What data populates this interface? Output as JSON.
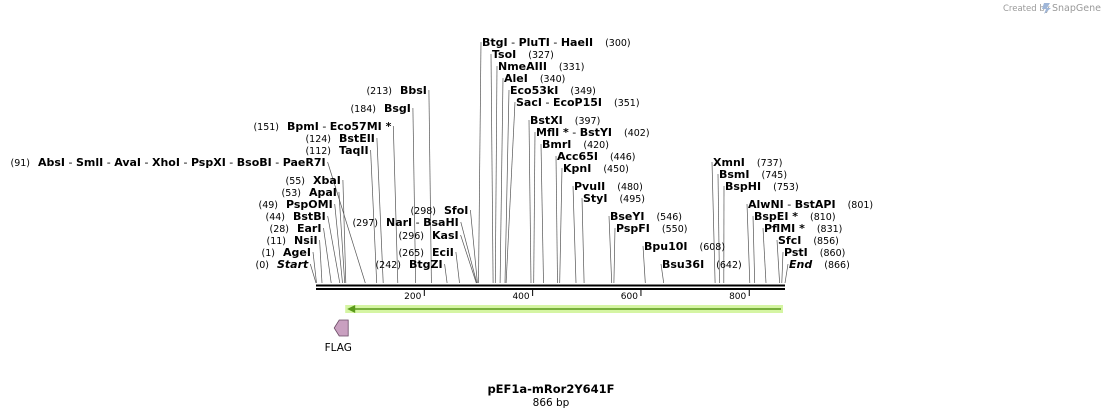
{
  "credit": {
    "prefix": "Created by",
    "brand": "SnapGene"
  },
  "plasmid": {
    "name": "pEF1a-mRor2Y641F",
    "length_label": "866 bp",
    "length": 866
  },
  "ruler": {
    "ticks": [
      200,
      400,
      600,
      800
    ]
  },
  "features": [
    {
      "name": "FLAG",
      "start": 65,
      "end": 72,
      "direction": "reverse",
      "color": "#c9a0c0"
    }
  ],
  "orf": {
    "start": 65,
    "end": 866,
    "direction": "forward",
    "color": "#a6e34a"
  },
  "sites": [
    {
      "label": "Start",
      "pos": 0,
      "show_pos": "(0)",
      "italic": true,
      "parts": [
        "Start"
      ]
    },
    {
      "label": "AgeI",
      "pos": 1,
      "show_pos": "(1)",
      "parts": [
        "AgeI"
      ]
    },
    {
      "label": "NsiI",
      "pos": 11,
      "show_pos": "(11)",
      "parts": [
        "NsiI"
      ]
    },
    {
      "label": "EarI",
      "pos": 28,
      "show_pos": "(28)",
      "parts": [
        "EarI"
      ]
    },
    {
      "label": "BstBI",
      "pos": 44,
      "show_pos": "(44)",
      "parts": [
        "BstBI"
      ]
    },
    {
      "label": "PspOMI",
      "pos": 49,
      "show_pos": "(49)",
      "parts": [
        "PspOMI"
      ]
    },
    {
      "label": "ApaI",
      "pos": 53,
      "show_pos": "(53)",
      "parts": [
        "ApaI"
      ]
    },
    {
      "label": "XbaI",
      "pos": 55,
      "show_pos": "(55)",
      "parts": [
        "XbaI"
      ]
    },
    {
      "label": "AbsI group",
      "pos": 91,
      "show_pos": "(91)",
      "parts": [
        "AbsI",
        "SmlI",
        "AvaI",
        "XhoI",
        "PspXI",
        "BsoBI",
        "PaeR7I"
      ]
    },
    {
      "label": "TaqII",
      "pos": 112,
      "show_pos": "(112)",
      "parts": [
        "TaqII"
      ]
    },
    {
      "label": "BstEII",
      "pos": 124,
      "show_pos": "(124)",
      "parts": [
        "BstEII"
      ]
    },
    {
      "label": "BpmI group",
      "pos": 151,
      "show_pos": "(151)",
      "parts": [
        "BpmI",
        "Eco57MI *"
      ]
    },
    {
      "label": "BsgI",
      "pos": 184,
      "show_pos": "(184)",
      "parts": [
        "BsgI"
      ]
    },
    {
      "label": "BbsI",
      "pos": 213,
      "show_pos": "(213)",
      "parts": [
        "BbsI"
      ]
    },
    {
      "label": "BtgZI",
      "pos": 242,
      "show_pos": "(242)",
      "parts": [
        "BtgZI"
      ]
    },
    {
      "label": "EciI",
      "pos": 265,
      "show_pos": "(265)",
      "parts": [
        "EciI"
      ]
    },
    {
      "label": "KasI",
      "pos": 296,
      "show_pos": "(296)",
      "parts": [
        "KasI"
      ]
    },
    {
      "label": "NarI group",
      "pos": 297,
      "show_pos": "(297)",
      "parts": [
        "NarI",
        "BsaHI"
      ]
    },
    {
      "label": "SfoI",
      "pos": 298,
      "show_pos": "(298)",
      "parts": [
        "SfoI"
      ]
    },
    {
      "label": "BtgI group",
      "pos": 300,
      "show_pos": "(300)",
      "parts": [
        "BtgI",
        "PluTI",
        "HaeII"
      ]
    },
    {
      "label": "TsoI",
      "pos": 327,
      "show_pos": "(327)",
      "parts": [
        "TsoI"
      ]
    },
    {
      "label": "NmeAIII",
      "pos": 331,
      "show_pos": "(331)",
      "parts": [
        "NmeAIII"
      ]
    },
    {
      "label": "AleI",
      "pos": 340,
      "show_pos": "(340)",
      "parts": [
        "AleI"
      ]
    },
    {
      "label": "Eco53kI",
      "pos": 349,
      "show_pos": "(349)",
      "parts": [
        "Eco53kI"
      ]
    },
    {
      "label": "SacI group",
      "pos": 351,
      "show_pos": "(351)",
      "parts": [
        "SacI",
        "EcoP15I"
      ]
    },
    {
      "label": "BstXI",
      "pos": 397,
      "show_pos": "(397)",
      "parts": [
        "BstXI"
      ]
    },
    {
      "label": "MflI group",
      "pos": 402,
      "show_pos": "(402)",
      "parts": [
        "MflI *",
        "BstYI"
      ]
    },
    {
      "label": "BmrI",
      "pos": 420,
      "show_pos": "(420)",
      "parts": [
        "BmrI"
      ]
    },
    {
      "label": "Acc65I",
      "pos": 446,
      "show_pos": "(446)",
      "parts": [
        "Acc65I"
      ]
    },
    {
      "label": "KpnI",
      "pos": 450,
      "show_pos": "(450)",
      "parts": [
        "KpnI"
      ]
    },
    {
      "label": "PvuII",
      "pos": 480,
      "show_pos": "(480)",
      "parts": [
        "PvuII"
      ]
    },
    {
      "label": "StyI",
      "pos": 495,
      "show_pos": "(495)",
      "parts": [
        "StyI"
      ]
    },
    {
      "label": "BseYI",
      "pos": 546,
      "show_pos": "(546)",
      "parts": [
        "BseYI"
      ]
    },
    {
      "label": "PspFI",
      "pos": 550,
      "show_pos": "(550)",
      "parts": [
        "PspFI"
      ]
    },
    {
      "label": "Bpu10I",
      "pos": 608,
      "show_pos": "(608)",
      "parts": [
        "Bpu10I"
      ]
    },
    {
      "label": "Bsu36I",
      "pos": 642,
      "show_pos": "(642)",
      "parts": [
        "Bsu36I"
      ]
    },
    {
      "label": "XmnI",
      "pos": 737,
      "show_pos": "(737)",
      "parts": [
        "XmnI"
      ]
    },
    {
      "label": "BsmI",
      "pos": 745,
      "show_pos": "(745)",
      "parts": [
        "BsmI"
      ]
    },
    {
      "label": "BspHI",
      "pos": 753,
      "show_pos": "(753)",
      "parts": [
        "BspHI"
      ]
    },
    {
      "label": "AlwNI group",
      "pos": 801,
      "show_pos": "(801)",
      "parts": [
        "AlwNI",
        "BstAPI"
      ]
    },
    {
      "label": "BspEI",
      "pos": 810,
      "show_pos": "(810)",
      "parts": [
        "BspEI *"
      ]
    },
    {
      "label": "PflMI",
      "pos": 831,
      "show_pos": "(831)",
      "parts": [
        "PflMI *"
      ]
    },
    {
      "label": "SfcI",
      "pos": 856,
      "show_pos": "(856)",
      "parts": [
        "SfcI"
      ]
    },
    {
      "label": "PstI",
      "pos": 860,
      "show_pos": "(860)",
      "parts": [
        "PstI"
      ]
    },
    {
      "label": "End",
      "pos": 866,
      "show_pos": "(866)",
      "italic": true,
      "parts": [
        "End"
      ]
    }
  ]
}
